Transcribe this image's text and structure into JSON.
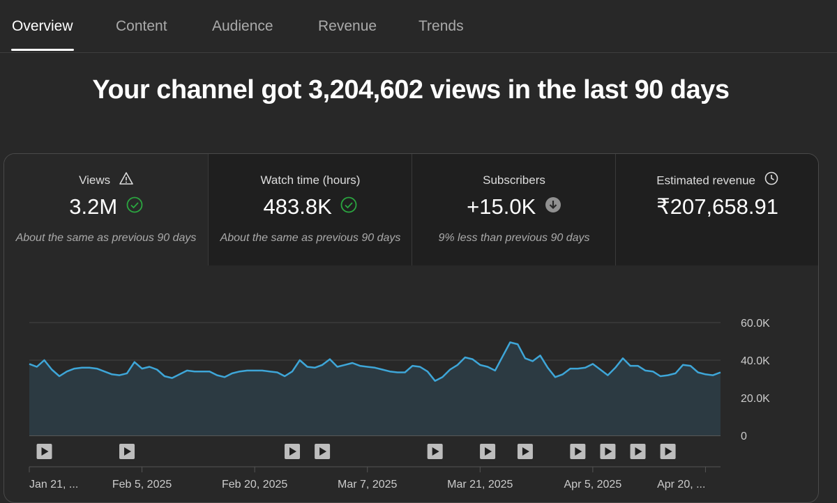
{
  "tabs": [
    {
      "label": "Overview",
      "active": true
    },
    {
      "label": "Content",
      "active": false
    },
    {
      "label": "Audience",
      "active": false
    },
    {
      "label": "Revenue",
      "active": false
    },
    {
      "label": "Trends",
      "active": false
    }
  ],
  "headline": "Your channel got 3,204,602 views in the last 90 days",
  "metrics": [
    {
      "label": "Views",
      "value": "3.2M",
      "comparison": "About the same as previous 90 days",
      "label_icon": "warning-icon",
      "value_icon": "check-circle-icon"
    },
    {
      "label": "Watch time (hours)",
      "value": "483.8K",
      "comparison": "About the same as previous 90 days",
      "value_icon": "check-circle-icon"
    },
    {
      "label": "Subscribers",
      "value": "+15.0K",
      "comparison": "9% less than previous 90 days",
      "value_icon": "arrow-down-circle-icon"
    },
    {
      "label": "Estimated revenue",
      "value": "₹207,658.91",
      "comparison": "",
      "label_icon": "clock-icon"
    }
  ],
  "colors": {
    "line": "#3ea6d8",
    "area": "#2c3a42",
    "check": "#2ba640",
    "background": "#282828"
  },
  "chart_data": {
    "type": "area",
    "series": [
      {
        "values": [
          38000,
          36500,
          40000,
          35000,
          31500,
          34000,
          35500,
          36000,
          36000,
          35500,
          34000,
          32500,
          32000,
          33000,
          39000,
          35500,
          36500,
          35000,
          31500,
          30500,
          32500,
          34500,
          34000,
          34000,
          34000,
          32000,
          31000,
          33000,
          34000,
          34500,
          34500,
          34500,
          34000,
          33500,
          31500,
          34000,
          40000,
          36500,
          36000,
          37500,
          40500,
          36500,
          37500,
          38500,
          37000,
          36500,
          36000,
          35000,
          34000,
          33500,
          33500,
          37000,
          36500,
          34000,
          29000,
          31000,
          35000,
          37500,
          41500,
          40500,
          37500,
          36500,
          34500,
          42000,
          49500,
          48500,
          41000,
          39500,
          42500,
          36000,
          31000,
          32500,
          35500,
          35500,
          36000,
          38000,
          35000,
          32000,
          36000,
          41000,
          37000,
          37000,
          34500,
          34000,
          31500,
          32000,
          33000,
          37500,
          37000,
          33500,
          32500,
          32000,
          33500
        ]
      }
    ],
    "ylim": [
      0,
      60000
    ],
    "y_ticks": [
      "0",
      "20.0K",
      "40.0K",
      "60.0K"
    ],
    "x_tick_labels": [
      "Jan 21, ...",
      "Feb 5, 2025",
      "Feb 20, 2025",
      "Mar 7, 2025",
      "Mar 21, 2025",
      "Apr 5, 2025",
      "Apr 20, ..."
    ],
    "x_tick_index": [
      0,
      15,
      30,
      45,
      60,
      75,
      90
    ],
    "video_markers_index": [
      2,
      13,
      35,
      39,
      54,
      61,
      66,
      73,
      77,
      81,
      85
    ],
    "grid": true
  }
}
